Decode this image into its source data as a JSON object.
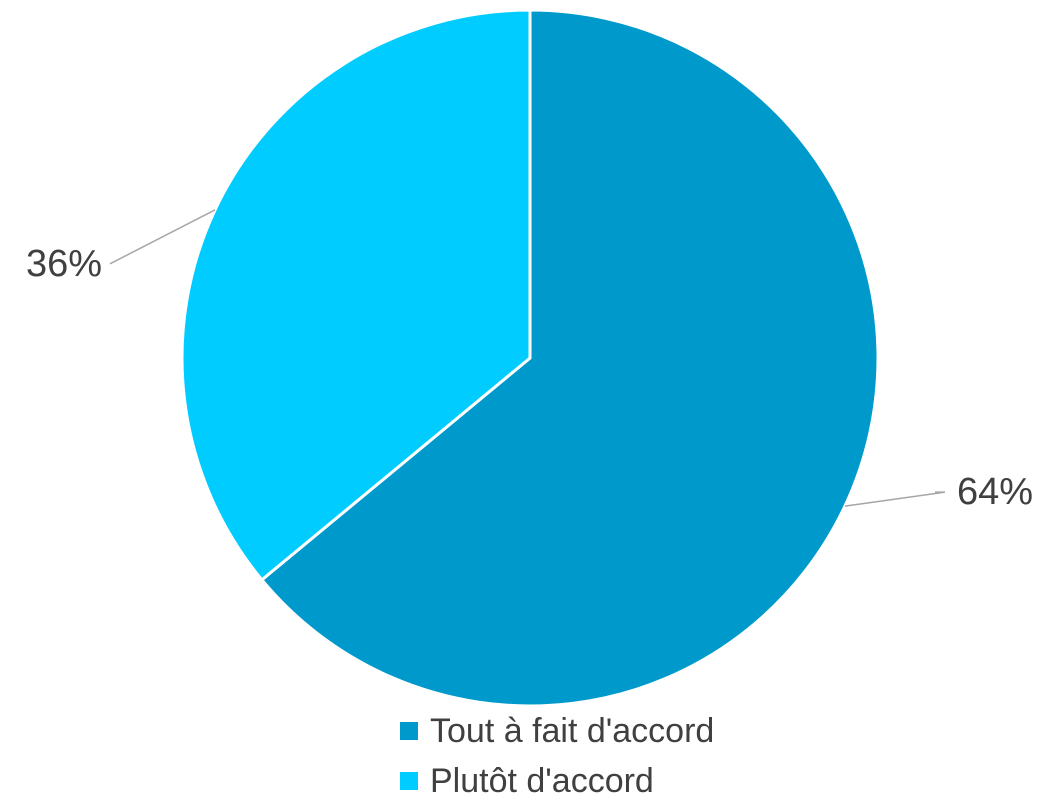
{
  "chart_data": {
    "type": "pie",
    "title": "",
    "slices": [
      {
        "label": "Tout à fait d'accord",
        "value": 64,
        "display": "64%",
        "color": "#0099CC"
      },
      {
        "label": "Plutôt d'accord",
        "value": 36,
        "display": "36%",
        "color": "#00CCFF"
      }
    ],
    "legend": {
      "position": "bottom"
    }
  }
}
